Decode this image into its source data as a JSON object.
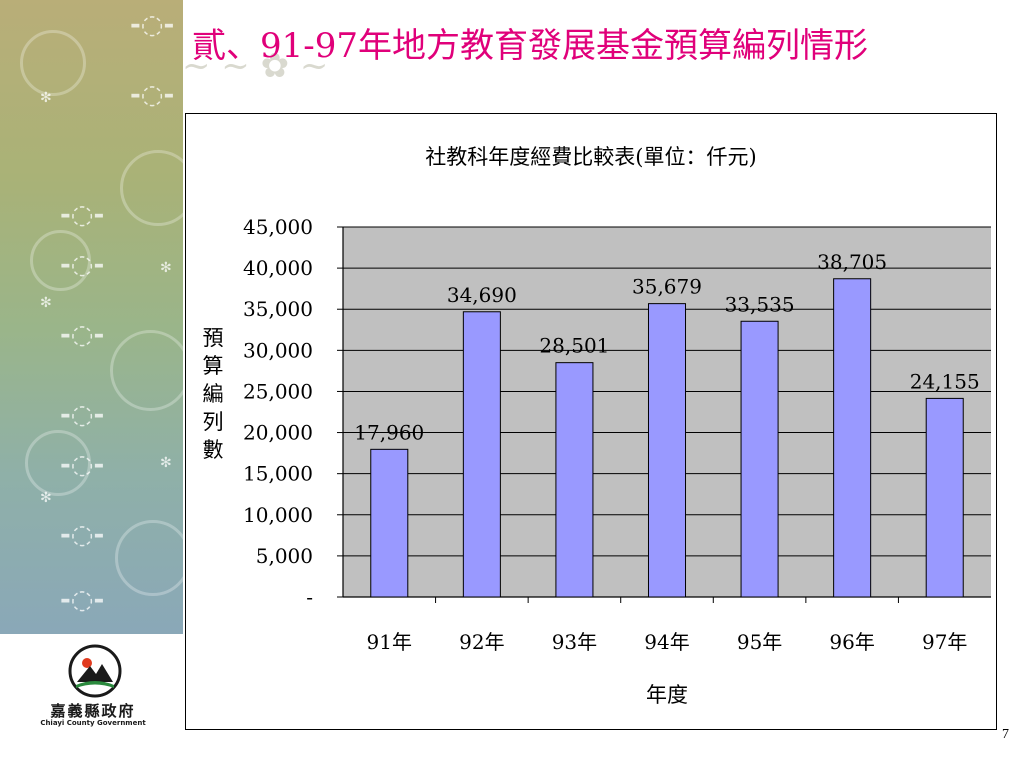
{
  "slide": {
    "title": "貳、91-97年地方教育發展基金預算編列情形",
    "page_number": "7"
  },
  "logo": {
    "name": "嘉義縣政府",
    "subtitle": "Chiayi County Government"
  },
  "colors": {
    "title": "#e0007a",
    "bar_fill": "#9999ff",
    "plot_bg": "#c0c0c0"
  },
  "chart_data": {
    "type": "bar",
    "title": "社教科年度經費比較表(單位：仟元)",
    "xlabel": "年度",
    "ylabel": "預算編列數",
    "categories": [
      "91年",
      "92年",
      "93年",
      "94年",
      "95年",
      "96年",
      "97年"
    ],
    "values": [
      17960,
      34690,
      28501,
      35679,
      33535,
      38705,
      24155
    ],
    "value_labels": [
      "17,960",
      "34,690",
      "28,501",
      "35,679",
      "33,535",
      "38,705",
      "24,155"
    ],
    "ylim": [
      0,
      45000
    ],
    "yticks": [
      0,
      5000,
      10000,
      15000,
      20000,
      25000,
      30000,
      35000,
      40000,
      45000
    ],
    "ytick_labels": [
      "-",
      "5,000",
      "10,000",
      "15,000",
      "20,000",
      "25,000",
      "30,000",
      "35,000",
      "40,000",
      "45,000"
    ],
    "grid": true,
    "legend": "none"
  }
}
